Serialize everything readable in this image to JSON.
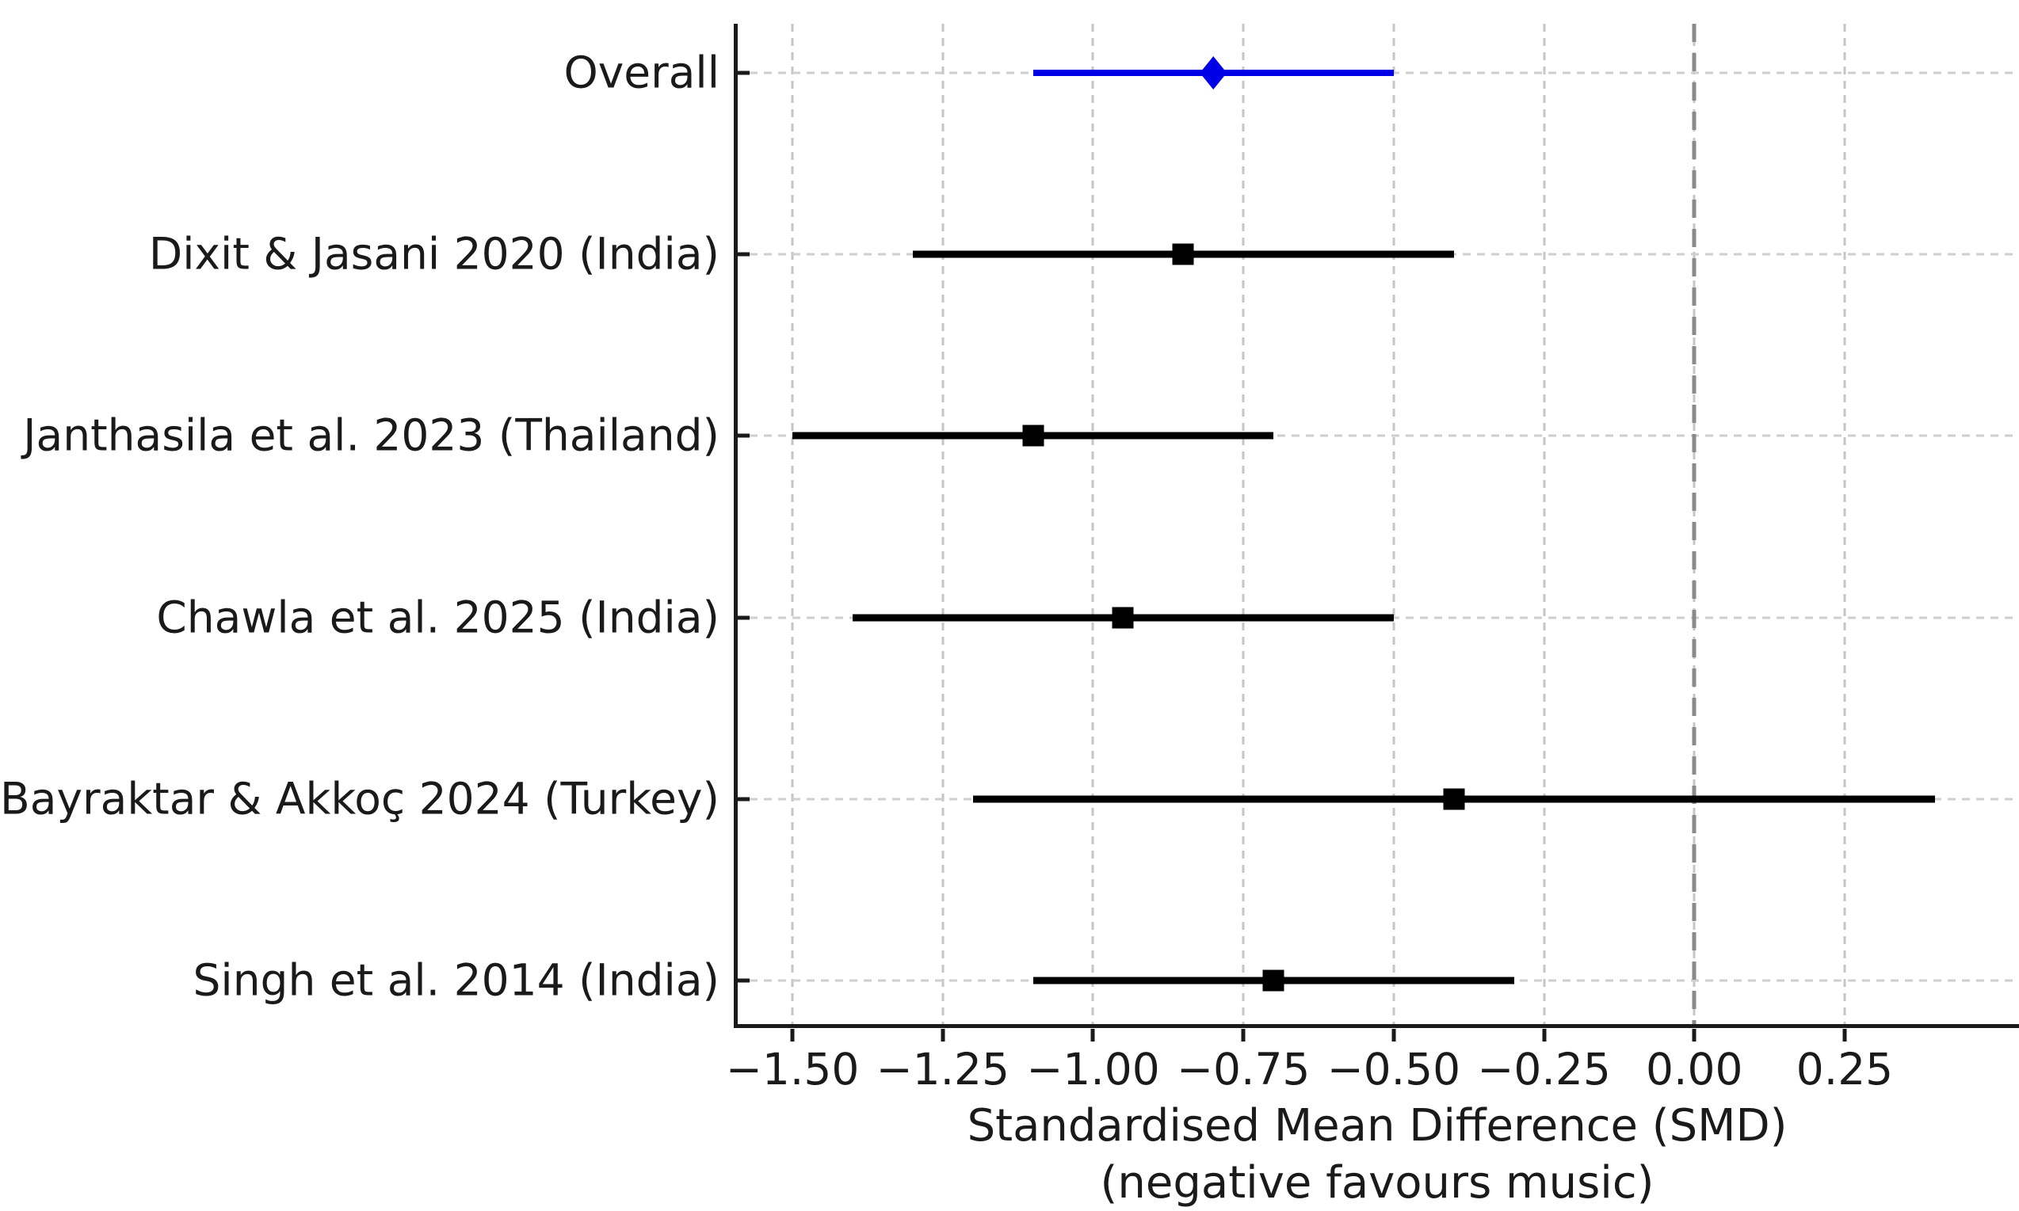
{
  "chart_data": {
    "type": "scatter",
    "subtype": "forest-plot",
    "xlabel_line1": "Standardised Mean Difference (SMD)",
    "xlabel_line2": "(negative favours music)",
    "x_ticks": [
      -1.5,
      -1.25,
      -1.0,
      -0.75,
      -0.5,
      -0.25,
      0.0,
      0.25
    ],
    "x_tick_labels": [
      "−1.50",
      "−1.25",
      "−1.00",
      "−0.75",
      "−0.50",
      "−0.25",
      "0.00",
      "0.25"
    ],
    "xlim": [
      -1.595,
      0.54
    ],
    "zero_line_x": 0.0,
    "grid": true,
    "legend_position": "none",
    "studies": [
      {
        "label": "Overall",
        "smd": -0.8,
        "ci_low": -1.1,
        "ci_high": -0.5,
        "overall": true,
        "marker": "diamond"
      },
      {
        "label": "Dixit & Jasani 2020 (India)",
        "smd": -0.85,
        "ci_low": -1.3,
        "ci_high": -0.4,
        "overall": false,
        "marker": "square"
      },
      {
        "label": "Janthasila et al. 2023 (Thailand)",
        "smd": -1.1,
        "ci_low": -1.5,
        "ci_high": -0.7,
        "overall": false,
        "marker": "square"
      },
      {
        "label": "Chawla et al. 2025 (India)",
        "smd": -0.95,
        "ci_low": -1.4,
        "ci_high": -0.5,
        "overall": false,
        "marker": "square"
      },
      {
        "label": "Bayraktar & Akkoç 2024 (Turkey)",
        "smd": -0.4,
        "ci_low": -1.2,
        "ci_high": 0.4,
        "overall": false,
        "marker": "square"
      },
      {
        "label": "Singh et al. 2014 (India)",
        "smd": -0.7,
        "ci_low": -1.1,
        "ci_high": -0.3,
        "overall": false,
        "marker": "square"
      }
    ],
    "colors": {
      "overall": "#0000e6",
      "study": "#000000",
      "grid": "#cccccc",
      "zero_line": "#8a8a8a",
      "axis": "#1a1a1a",
      "text": "#1a1a1a"
    }
  }
}
